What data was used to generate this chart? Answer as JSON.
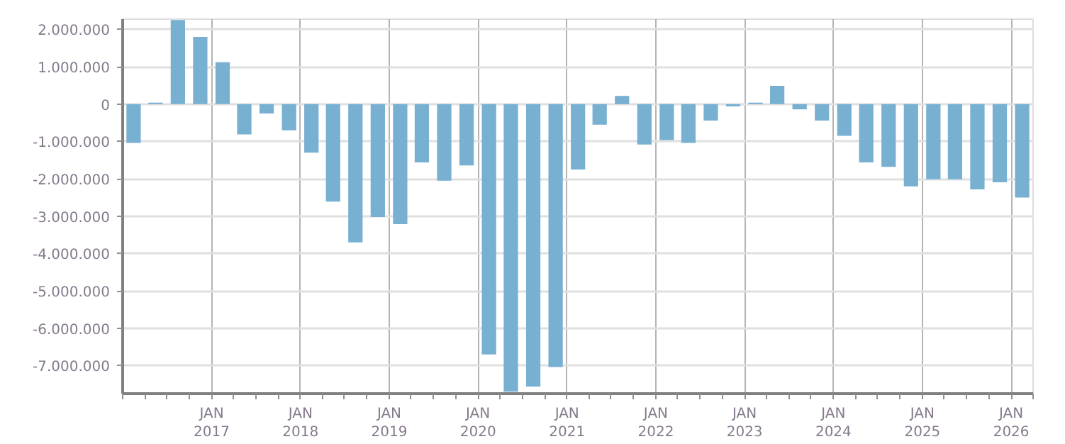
{
  "chart_data": {
    "type": "bar",
    "color": "#78b0d2",
    "grid": true,
    "x": [
      "2016-02-15",
      "2016-05-15",
      "2016-08-15",
      "2016-11-15",
      "2017-02-15",
      "2017-05-15",
      "2017-08-15",
      "2017-11-15",
      "2018-02-15",
      "2018-05-15",
      "2018-08-15",
      "2018-11-15",
      "2019-02-15",
      "2019-05-15",
      "2019-08-15",
      "2019-11-15",
      "2020-02-15",
      "2020-05-15",
      "2020-08-15",
      "2020-11-15",
      "2021-02-15",
      "2021-05-15",
      "2021-08-15",
      "2021-11-15",
      "2022-02-15",
      "2022-05-15",
      "2022-08-15",
      "2022-11-15",
      "2023-02-15",
      "2023-05-15",
      "2023-08-15",
      "2023-11-15",
      "2024-02-15",
      "2024-05-15",
      "2024-08-15",
      "2024-11-15",
      "2025-02-15",
      "2025-05-15",
      "2025-08-15",
      "2025-11-15",
      "2026-02-15"
    ],
    "values": [
      -1040000,
      40000,
      2250000,
      1800000,
      1120000,
      -810000,
      -250000,
      -700000,
      -1300000,
      -2610000,
      -3700000,
      -3020000,
      -3210000,
      -1560000,
      -2050000,
      -1640000,
      -6700000,
      -7700000,
      -7560000,
      -7040000,
      -1750000,
      -550000,
      220000,
      -1080000,
      -960000,
      -1040000,
      -440000,
      -60000,
      40000,
      490000,
      -140000,
      -440000,
      -850000,
      -1560000,
      -1680000,
      -2200000,
      -2010000,
      -2010000,
      -2280000,
      -2090000,
      -2500000
    ],
    "xlim": [
      "2016-01-01",
      "2026-04-01"
    ],
    "xticks": [
      {
        "value": "2016-01-01",
        "label": null
      },
      {
        "value": "2016-04-01",
        "label": null
      },
      {
        "value": "2016-07-01",
        "label": null
      },
      {
        "value": "2016-10-01",
        "label": null
      },
      {
        "value": "2017-01-01",
        "label": "JAN\n2017"
      },
      {
        "value": "2017-04-01",
        "label": null
      },
      {
        "value": "2017-07-01",
        "label": null
      },
      {
        "value": "2017-10-01",
        "label": null
      },
      {
        "value": "2018-01-01",
        "label": "JAN\n2018"
      },
      {
        "value": "2018-04-01",
        "label": null
      },
      {
        "value": "2018-07-01",
        "label": null
      },
      {
        "value": "2018-10-01",
        "label": null
      },
      {
        "value": "2019-01-01",
        "label": "JAN\n2019"
      },
      {
        "value": "2019-04-01",
        "label": null
      },
      {
        "value": "2019-07-01",
        "label": null
      },
      {
        "value": "2019-10-01",
        "label": null
      },
      {
        "value": "2020-01-01",
        "label": "JAN\n2020"
      },
      {
        "value": "2020-04-01",
        "label": null
      },
      {
        "value": "2020-07-01",
        "label": null
      },
      {
        "value": "2020-10-01",
        "label": null
      },
      {
        "value": "2021-01-01",
        "label": "JAN\n2021"
      },
      {
        "value": "2021-04-01",
        "label": null
      },
      {
        "value": "2021-07-01",
        "label": null
      },
      {
        "value": "2021-10-01",
        "label": null
      },
      {
        "value": "2022-01-01",
        "label": "JAN\n2022"
      },
      {
        "value": "2022-04-01",
        "label": null
      },
      {
        "value": "2022-07-01",
        "label": null
      },
      {
        "value": "2022-10-01",
        "label": null
      },
      {
        "value": "2023-01-01",
        "label": "JAN\n2023"
      },
      {
        "value": "2023-04-01",
        "label": null
      },
      {
        "value": "2023-07-01",
        "label": null
      },
      {
        "value": "2023-10-01",
        "label": null
      },
      {
        "value": "2024-01-01",
        "label": "JAN\n2024"
      },
      {
        "value": "2024-04-01",
        "label": null
      },
      {
        "value": "2024-07-01",
        "label": null
      },
      {
        "value": "2024-10-01",
        "label": null
      },
      {
        "value": "2025-01-01",
        "label": "JAN\n2025"
      },
      {
        "value": "2025-04-01",
        "label": null
      },
      {
        "value": "2025-07-01",
        "label": null
      },
      {
        "value": "2025-10-01",
        "label": null
      },
      {
        "value": "2026-01-01",
        "label": "JAN\n2026"
      },
      {
        "value": "2026-04-01",
        "label": null
      }
    ],
    "ylim": [
      -7750000,
      2275000
    ],
    "yticks": [
      {
        "value": -7000000,
        "label": "-7.000.000"
      },
      {
        "value": -6000000,
        "label": "-6.000.000"
      },
      {
        "value": -5000000,
        "label": "-5.000.000"
      },
      {
        "value": -4000000,
        "label": "-4.000.000"
      },
      {
        "value": -3000000,
        "label": "-3.000.000"
      },
      {
        "value": -2000000,
        "label": "-2.000.000"
      },
      {
        "value": -1000000,
        "label": "-1.000.000"
      },
      0,
      {
        "value": 1000000,
        "label": "1.000.000"
      },
      {
        "value": 2000000,
        "label": "2.000.000"
      }
    ]
  }
}
